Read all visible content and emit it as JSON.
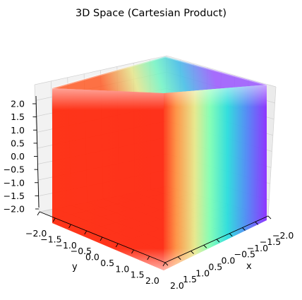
{
  "chart_data": {
    "type": "scatter",
    "projection": "3d",
    "title": "3D Space (Cartesian Product)",
    "xlabel": "x",
    "ylabel": "y",
    "zlabel": "",
    "xlim": [
      -2.0,
      2.0
    ],
    "ylim": [
      -2.0,
      2.0
    ],
    "zlim": [
      -2.0,
      2.0
    ],
    "x_ticks": [
      "−2.0",
      "−1.5",
      "−1.0",
      "−0.5",
      "0.0",
      "0.5",
      "1.0",
      "1.5",
      "2.0"
    ],
    "y_ticks": [
      "−2.0",
      "−1.5",
      "−1.0",
      "−0.5",
      "0.0",
      "0.5",
      "1.0",
      "1.5",
      "2.0"
    ],
    "z_ticks": [
      "−2.0",
      "−1.5",
      "−1.0",
      "−0.5",
      "0.0",
      "0.5",
      "1.0",
      "1.5",
      "2.0"
    ],
    "grid": true,
    "colormap": "rainbow",
    "color_by": "x",
    "colors": {
      "low": "#8000ff",
      "mid_low": "#2adddd",
      "mid": "#80ffb4",
      "mid_high": "#ffb360",
      "high": "#ff2d10"
    },
    "view": {
      "elev": 20,
      "azim": 45
    },
    "points": {
      "description": "Cartesian product of x, y, z each on a uniform grid over the ranges",
      "x_range": [
        -2.0,
        2.0
      ],
      "y_range": [
        -2.0,
        2.0
      ],
      "z_range": [
        -2.0,
        2.0
      ]
    }
  }
}
